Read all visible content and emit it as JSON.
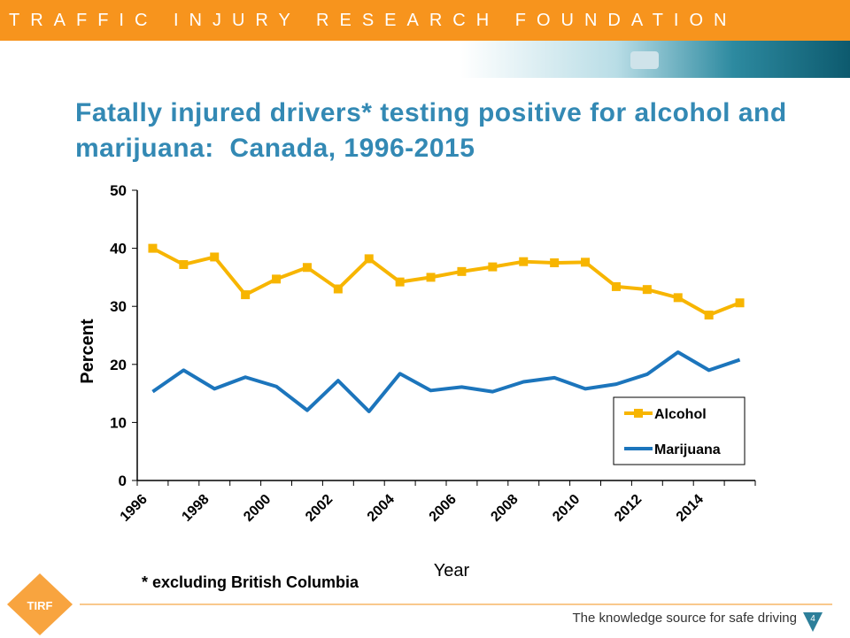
{
  "header": {
    "organization": "TRAFFIC INJURY RESEARCH FOUNDATION"
  },
  "chart_data": {
    "type": "line",
    "title": "Fatally injured drivers* testing positive for alcohol and marijuana:  Canada, 1996-2015",
    "y_label": "Percent",
    "x_label": "Year",
    "categories": [
      "1996",
      null,
      "1998",
      null,
      "2000",
      null,
      "2002",
      null,
      "2004",
      null,
      "2006",
      null,
      "2008",
      null,
      "2010",
      null,
      "2012",
      null,
      "2014",
      null
    ],
    "series": [
      {
        "name": "Alcohol",
        "color": "#f7b500",
        "marker": "square",
        "values": [
          40,
          37.2,
          38.5,
          32,
          34.7,
          36.7,
          33,
          38.2,
          34.2,
          35,
          36,
          36.8,
          37.7,
          37.5,
          37.6,
          33.4,
          32.9,
          31.5,
          28.5,
          30.6
        ]
      },
      {
        "name": "Marijuana",
        "color": "#1c75bc",
        "values": [
          15.3,
          19,
          15.8,
          17.8,
          16.2,
          12.1,
          17.2,
          11.9,
          18.4,
          15.5,
          16.1,
          15.3,
          17,
          17.7,
          15.8,
          16.6,
          18.3,
          22.1,
          19,
          20.8
        ]
      }
    ],
    "ylim": [
      0,
      50
    ],
    "yticks": [
      0,
      10,
      20,
      30,
      40,
      50
    ],
    "grid": false,
    "legend": "lower right"
  },
  "footnote": "* excluding British Columbia",
  "footer": {
    "tagline": "The knowledge source for safe driving",
    "page": "4",
    "logo": "TIRF"
  }
}
